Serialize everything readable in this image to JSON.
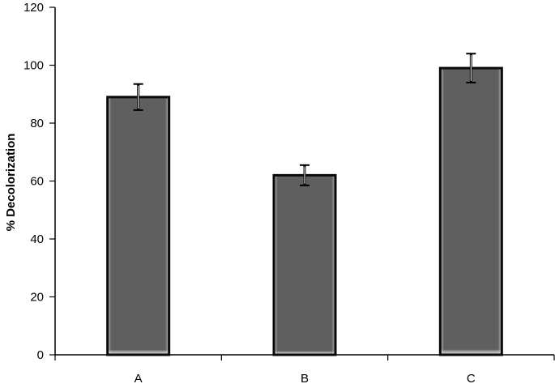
{
  "chart_data": {
    "type": "bar",
    "title": "",
    "xlabel": "",
    "ylabel": "% Decolorization",
    "categories": [
      "A",
      "B",
      "C"
    ],
    "values": [
      89,
      62,
      99
    ],
    "errors": [
      4.5,
      3.5,
      5
    ],
    "ylim": [
      0,
      120
    ],
    "yticks": [
      0,
      20,
      40,
      60,
      80,
      100,
      120
    ],
    "grid": false,
    "legend": "none",
    "colors": {
      "bar_fill": "#5f5f5f",
      "bar_edge": "#0a0a0a",
      "bar_highlight": "#c8c8c8",
      "axis": "#000000",
      "error_bar": "#000000",
      "error_cap_inner": "#ffffff"
    }
  }
}
